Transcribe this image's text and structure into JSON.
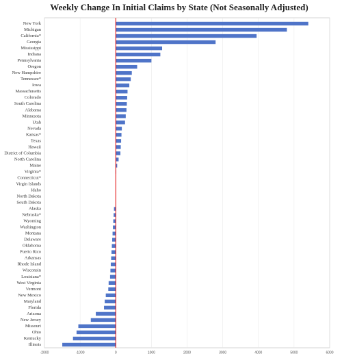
{
  "chart_data": {
    "type": "barh",
    "title": "Weekly Change In Initial Claims by State (Not Seasonally Adjusted)",
    "categories": [
      "New York",
      "Michigan",
      "California*",
      "Georgia",
      "Mississippi",
      "Indiana",
      "Pennsylvania",
      "Oregon",
      "New Hampshire",
      "Tennessee*",
      "Iowa",
      "Massachusetts",
      "Colorado",
      "South Carolina",
      "Alabama",
      "Minnesota",
      "Utah",
      "Nevada",
      "Kansas*",
      "Texas",
      "Hawaii",
      "District of Columbia",
      "North Carolina",
      "Maine",
      "Virginia*",
      "Connecticut*",
      "Virgin Islands",
      "Idaho",
      "North Dakota",
      "South Dakota",
      "Alaska",
      "Nebraska*",
      "Wyoming",
      "Washington",
      "Montana",
      "Delaware",
      "Oklahoma",
      "Puerto Rico",
      "Arkansas",
      "Rhode Island",
      "Wisconsin",
      "Louisiana*",
      "West Virginia",
      "Vermont",
      "New Mexico",
      "Maryland",
      "Florida",
      "Arizona",
      "New Jersey",
      "Missouri",
      "Ohio",
      "Kentucky",
      "Illinois"
    ],
    "values": [
      5400,
      4800,
      3950,
      2800,
      1300,
      1250,
      1000,
      600,
      450,
      420,
      380,
      330,
      320,
      310,
      300,
      280,
      260,
      170,
      160,
      150,
      140,
      130,
      80,
      40,
      10,
      5,
      0,
      0,
      0,
      0,
      -50,
      -60,
      -70,
      -80,
      -90,
      -100,
      -110,
      -120,
      -130,
      -140,
      -150,
      -160,
      -200,
      -210,
      -280,
      -310,
      -330,
      -560,
      -700,
      -1050,
      -1100,
      -1200,
      -1500
    ],
    "color": "#4f74c8",
    "zero_line_color": "#e00000",
    "xlim": [
      -2000,
      6000
    ],
    "xticks": [
      -2000,
      -1000,
      0,
      1000,
      2000,
      3000,
      4000,
      5000,
      6000
    ],
    "grid": true
  }
}
